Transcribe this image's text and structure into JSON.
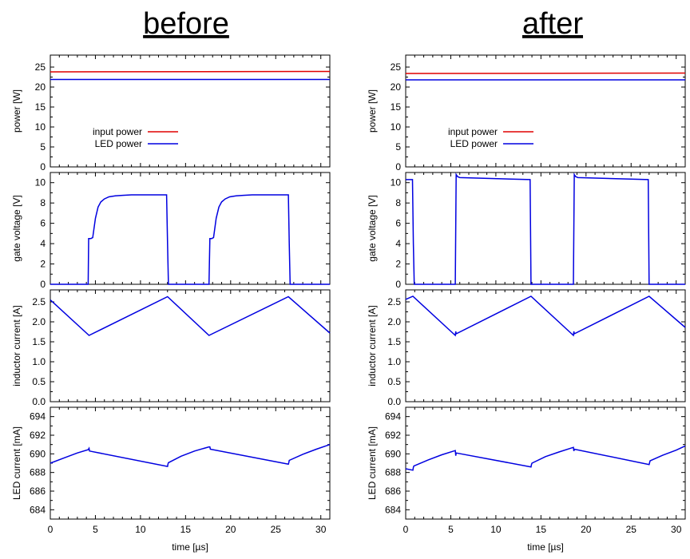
{
  "figure": {
    "titles": [
      "before",
      "after"
    ],
    "xlabel": "time [µs]"
  },
  "chart_data": [
    {
      "id": "before-power",
      "type": "line",
      "title": "",
      "xlabel": "",
      "ylabel": "power [W]",
      "xlim": [
        0,
        31
      ],
      "ylim": [
        0,
        28
      ],
      "yticks": [
        0,
        5,
        10,
        15,
        20,
        25
      ],
      "xticks": [
        0,
        5,
        10,
        15,
        20,
        25,
        30
      ],
      "grid": false,
      "legend": "center-left",
      "series": [
        {
          "name": "input power",
          "color": "#e00000",
          "x": [
            0,
            31
          ],
          "y": [
            23.8,
            23.9
          ]
        },
        {
          "name": "LED power",
          "color": "#0000e0",
          "x": [
            0,
            31
          ],
          "y": [
            21.9,
            21.9
          ]
        }
      ]
    },
    {
      "id": "before-gate",
      "type": "line",
      "title": "",
      "xlabel": "",
      "ylabel": "gate voltage [V]",
      "xlim": [
        0,
        31
      ],
      "ylim": [
        0,
        11
      ],
      "yticks": [
        0,
        2,
        4,
        6,
        8,
        10
      ],
      "xticks": [
        0,
        5,
        10,
        15,
        20,
        25,
        30
      ],
      "grid": false,
      "legend": "none",
      "series": [
        {
          "name": "",
          "color": "#0000e0",
          "x": [
            0,
            4.2,
            4.25,
            4.5,
            4.7,
            5.0,
            5.3,
            5.6,
            6.0,
            6.5,
            7.2,
            8.0,
            9.0,
            12.9,
            13.0,
            13.1,
            17.6,
            17.7,
            17.9,
            18.1,
            18.4,
            18.7,
            19.0,
            19.4,
            19.9,
            20.6,
            21.4,
            22.4,
            26.4,
            26.5,
            26.6,
            31
          ],
          "y": [
            0,
            0,
            4.5,
            4.5,
            4.6,
            6.5,
            7.6,
            8.1,
            8.4,
            8.6,
            8.7,
            8.75,
            8.8,
            8.8,
            4.0,
            0,
            0,
            4.5,
            4.5,
            4.6,
            6.5,
            7.6,
            8.1,
            8.4,
            8.6,
            8.7,
            8.75,
            8.8,
            8.8,
            4.0,
            0,
            0
          ]
        }
      ]
    },
    {
      "id": "before-inductor",
      "type": "line",
      "title": "",
      "xlabel": "",
      "ylabel": "inductor current [A]",
      "xlim": [
        0,
        31
      ],
      "ylim": [
        0,
        2.8
      ],
      "yticks": [
        0.0,
        0.5,
        1.0,
        1.5,
        2.0,
        2.5
      ],
      "ytick_labels": [
        "0.0",
        "0.5",
        "1.0",
        "1.5",
        "2.0",
        "2.5"
      ],
      "xticks": [
        0,
        5,
        10,
        15,
        20,
        25,
        30
      ],
      "grid": false,
      "legend": "none",
      "series": [
        {
          "name": "",
          "color": "#0000e0",
          "x": [
            0,
            4.3,
            13.0,
            17.6,
            26.4,
            31
          ],
          "y": [
            2.55,
            1.66,
            2.63,
            1.66,
            2.63,
            1.72
          ]
        }
      ]
    },
    {
      "id": "before-led",
      "type": "line",
      "title": "",
      "xlabel": "time [µs]",
      "ylabel": "LED current [mA]",
      "xlim": [
        0,
        31
      ],
      "ylim": [
        683,
        695
      ],
      "yticks": [
        684,
        686,
        688,
        690,
        692,
        694
      ],
      "xticks": [
        0,
        5,
        10,
        15,
        20,
        25,
        30
      ],
      "grid": false,
      "legend": "none",
      "series": [
        {
          "name": "",
          "color": "#0000e0",
          "x": [
            0,
            1.5,
            3.0,
            4.2,
            4.3,
            4.35,
            13.0,
            13.05,
            13.1,
            14.5,
            16.0,
            17.6,
            17.7,
            17.75,
            26.4,
            26.45,
            26.5,
            28.0,
            29.5,
            31
          ],
          "y": [
            689.0,
            689.55,
            690.1,
            690.45,
            690.6,
            690.3,
            688.65,
            688.9,
            689.05,
            689.75,
            690.3,
            690.75,
            690.75,
            690.5,
            688.9,
            689.05,
            689.3,
            689.95,
            690.5,
            691.0
          ]
        }
      ]
    },
    {
      "id": "after-power",
      "type": "line",
      "title": "",
      "xlabel": "",
      "ylabel": "power [W]",
      "xlim": [
        0,
        31
      ],
      "ylim": [
        0,
        28
      ],
      "yticks": [
        0,
        5,
        10,
        15,
        20,
        25
      ],
      "xticks": [
        0,
        5,
        10,
        15,
        20,
        25,
        30
      ],
      "grid": false,
      "legend": "center-left",
      "series": [
        {
          "name": "input power",
          "color": "#e00000",
          "x": [
            0,
            31
          ],
          "y": [
            23.4,
            23.5
          ]
        },
        {
          "name": "LED power",
          "color": "#0000e0",
          "x": [
            0,
            31
          ],
          "y": [
            21.8,
            21.8
          ]
        }
      ]
    },
    {
      "id": "after-gate",
      "type": "line",
      "title": "",
      "xlabel": "",
      "ylabel": "gate voltage [V]",
      "xlim": [
        0,
        31
      ],
      "ylim": [
        0,
        11
      ],
      "yticks": [
        0,
        2,
        4,
        6,
        8,
        10
      ],
      "xticks": [
        0,
        5,
        10,
        15,
        20,
        25,
        30
      ],
      "grid": false,
      "legend": "none",
      "series": [
        {
          "name": "",
          "color": "#0000e0",
          "x": [
            0,
            0.75,
            0.85,
            0.95,
            5.5,
            5.6,
            5.75,
            6.0,
            13.8,
            13.9,
            18.6,
            18.7,
            18.85,
            19.1,
            26.9,
            27.0,
            31
          ],
          "y": [
            10.3,
            10.3,
            4.0,
            0,
            0,
            10.8,
            10.6,
            10.5,
            10.3,
            0,
            0,
            10.8,
            10.6,
            10.5,
            10.3,
            0,
            0
          ]
        }
      ]
    },
    {
      "id": "after-inductor",
      "type": "line",
      "title": "",
      "xlabel": "",
      "ylabel": "inductor current [A]",
      "xlim": [
        0,
        31
      ],
      "ylim": [
        0,
        2.8
      ],
      "yticks": [
        0.0,
        0.5,
        1.0,
        1.5,
        2.0,
        2.5
      ],
      "ytick_labels": [
        "0.0",
        "0.5",
        "1.0",
        "1.5",
        "2.0",
        "2.5"
      ],
      "xticks": [
        0,
        5,
        10,
        15,
        20,
        25,
        30
      ],
      "grid": false,
      "legend": "none",
      "series": [
        {
          "name": "",
          "color": "#0000e0",
          "x": [
            0,
            0.8,
            5.5,
            5.55,
            5.6,
            13.9,
            18.6,
            18.65,
            18.7,
            27.0,
            31
          ],
          "y": [
            2.56,
            2.64,
            1.66,
            1.76,
            1.7,
            2.64,
            1.66,
            1.76,
            1.7,
            2.64,
            1.86
          ]
        }
      ]
    },
    {
      "id": "after-led",
      "type": "line",
      "title": "",
      "xlabel": "time [µs]",
      "ylabel": "LED current [mA]",
      "xlim": [
        0,
        31
      ],
      "ylim": [
        683,
        695
      ],
      "yticks": [
        684,
        686,
        688,
        690,
        692,
        694
      ],
      "xticks": [
        0,
        5,
        10,
        15,
        20,
        25,
        30
      ],
      "grid": false,
      "legend": "none",
      "series": [
        {
          "name": "",
          "color": "#0000e0",
          "x": [
            0,
            0.8,
            0.85,
            0.9,
            2.5,
            4.0,
            5.5,
            5.55,
            5.6,
            13.9,
            13.95,
            14.0,
            15.5,
            17.0,
            18.6,
            18.65,
            18.7,
            27.0,
            27.05,
            27.1,
            28.5,
            30.0,
            31
          ],
          "y": [
            688.4,
            688.25,
            688.55,
            688.7,
            689.35,
            689.9,
            690.35,
            689.8,
            690.1,
            688.6,
            688.85,
            689.0,
            689.7,
            690.2,
            690.7,
            690.3,
            690.5,
            688.85,
            689.05,
            689.25,
            689.85,
            690.4,
            690.85
          ]
        }
      ]
    }
  ]
}
